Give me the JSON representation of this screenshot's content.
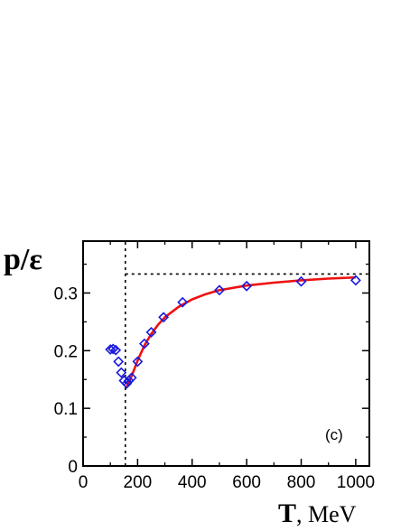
{
  "chart_data": {
    "type": "scatter",
    "ylabel": "p/ε",
    "xlabel_var": "T",
    "xlabel_unit": ", MeV",
    "annotation": "(c)",
    "xlim": [
      0,
      1050
    ],
    "ylim": [
      0,
      0.39
    ],
    "xticks": [
      0,
      200,
      400,
      600,
      800,
      1000
    ],
    "yticks": [
      0,
      0.1,
      0.2,
      0.3
    ],
    "xtick_labels": [
      "0",
      "200",
      "400",
      "600",
      "800",
      "1000"
    ],
    "ytick_labels": [
      "0",
      "0.1",
      "0.2",
      "0.3"
    ],
    "grid": false,
    "reference_lines": {
      "vertical_x": 155,
      "horizontal_y": 0.333
    },
    "series": [
      {
        "type": "scatter",
        "marker": "diamond",
        "color": "#1a1adc",
        "points": [
          [
            100,
            0.202
          ],
          [
            110,
            0.203
          ],
          [
            120,
            0.201
          ],
          [
            130,
            0.181
          ],
          [
            140,
            0.162
          ],
          [
            150,
            0.148
          ],
          [
            160,
            0.143
          ],
          [
            168,
            0.148
          ],
          [
            178,
            0.153
          ],
          [
            200,
            0.181
          ],
          [
            225,
            0.212
          ],
          [
            250,
            0.232
          ],
          [
            295,
            0.258
          ],
          [
            365,
            0.284
          ],
          [
            500,
            0.305
          ],
          [
            600,
            0.312
          ],
          [
            800,
            0.32
          ],
          [
            1000,
            0.322
          ]
        ]
      },
      {
        "type": "line",
        "color": "#ee1111",
        "points": [
          [
            160,
            0.138
          ],
          [
            180,
            0.158
          ],
          [
            200,
            0.183
          ],
          [
            225,
            0.209
          ],
          [
            250,
            0.229
          ],
          [
            275,
            0.245
          ],
          [
            300,
            0.258
          ],
          [
            350,
            0.276
          ],
          [
            400,
            0.289
          ],
          [
            450,
            0.298
          ],
          [
            500,
            0.305
          ],
          [
            600,
            0.313
          ],
          [
            700,
            0.318
          ],
          [
            800,
            0.322
          ],
          [
            900,
            0.325
          ],
          [
            1000,
            0.327
          ]
        ]
      }
    ]
  }
}
